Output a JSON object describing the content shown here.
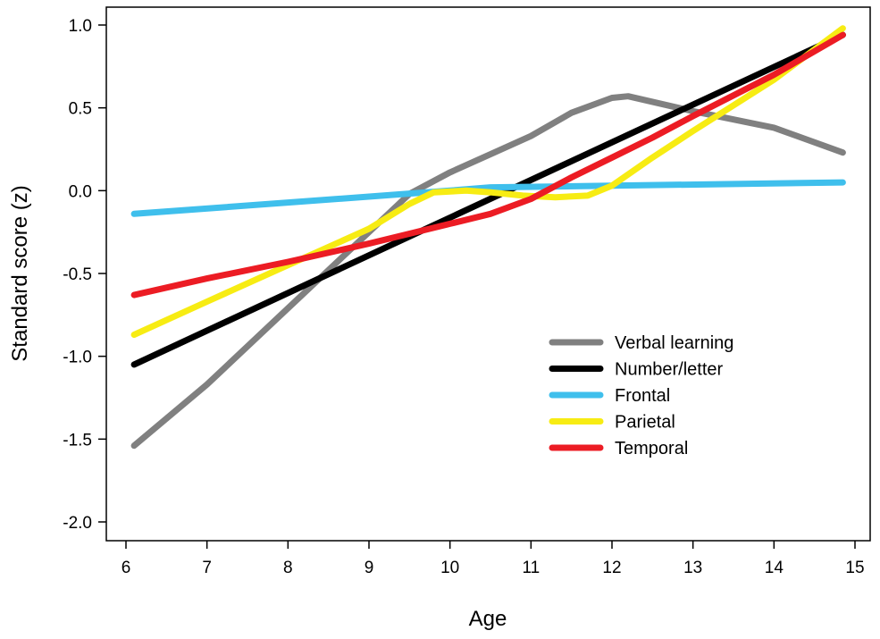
{
  "chart_data": {
    "type": "line",
    "title": "",
    "xlabel": "Age",
    "ylabel": "Standard score (z)",
    "xlim": [
      5.75,
      15.2
    ],
    "ylim": [
      -2.15,
      1.08
    ],
    "x_ticks": [
      6,
      7,
      8,
      9,
      10,
      11,
      12,
      13,
      14,
      15
    ],
    "x_tick_labels": [
      "6",
      "7",
      "8",
      "9",
      "10",
      "11",
      "12",
      "13",
      "14",
      "15"
    ],
    "y_ticks": [
      1.0,
      0.5,
      0.0,
      -0.5,
      -1.0,
      -1.5,
      -2.0
    ],
    "y_tick_labels": [
      "1.0",
      "0.5",
      "0.0",
      "-0.5",
      "-1.0",
      "-1.5",
      "-2.0"
    ],
    "grid": false,
    "legend_position": "lower-right",
    "series": [
      {
        "name": "Verbal learning",
        "color": "#808080",
        "x": [
          6.1,
          7,
          8,
          9,
          9.5,
          10,
          10.5,
          11,
          11.5,
          12,
          12.2,
          13,
          14,
          14.85
        ],
        "y": [
          -1.54,
          -1.17,
          -0.71,
          -0.25,
          -0.02,
          0.11,
          0.22,
          0.33,
          0.47,
          0.56,
          0.57,
          0.48,
          0.38,
          0.23
        ]
      },
      {
        "name": "Number/letter",
        "color": "#000000",
        "x": [
          6.1,
          14.85
        ],
        "y": [
          -1.05,
          0.94
        ]
      },
      {
        "name": "Frontal",
        "color": "#3fbfec",
        "x": [
          6.1,
          10,
          10.5,
          12,
          14.85
        ],
        "y": [
          -0.14,
          0.0,
          0.02,
          0.03,
          0.05
        ]
      },
      {
        "name": "Parietal",
        "color": "#f7ec13",
        "x": [
          6.1,
          7,
          8,
          9,
          9.5,
          9.8,
          10.2,
          10.5,
          10.9,
          11.3,
          11.7,
          12.0,
          12.5,
          13,
          14,
          14.85
        ],
        "y": [
          -0.87,
          -0.67,
          -0.45,
          -0.23,
          -0.08,
          -0.01,
          0.0,
          -0.01,
          -0.03,
          -0.04,
          -0.03,
          0.03,
          0.2,
          0.36,
          0.67,
          0.98
        ]
      },
      {
        "name": "Temporal",
        "color": "#ec1c24",
        "x": [
          6.1,
          7,
          8,
          9,
          9.5,
          10,
          10.5,
          11,
          11.5,
          12,
          12.5,
          13,
          14,
          14.85
        ],
        "y": [
          -0.63,
          -0.53,
          -0.43,
          -0.32,
          -0.26,
          -0.2,
          -0.14,
          -0.05,
          0.08,
          0.2,
          0.32,
          0.45,
          0.7,
          0.94
        ]
      }
    ]
  }
}
